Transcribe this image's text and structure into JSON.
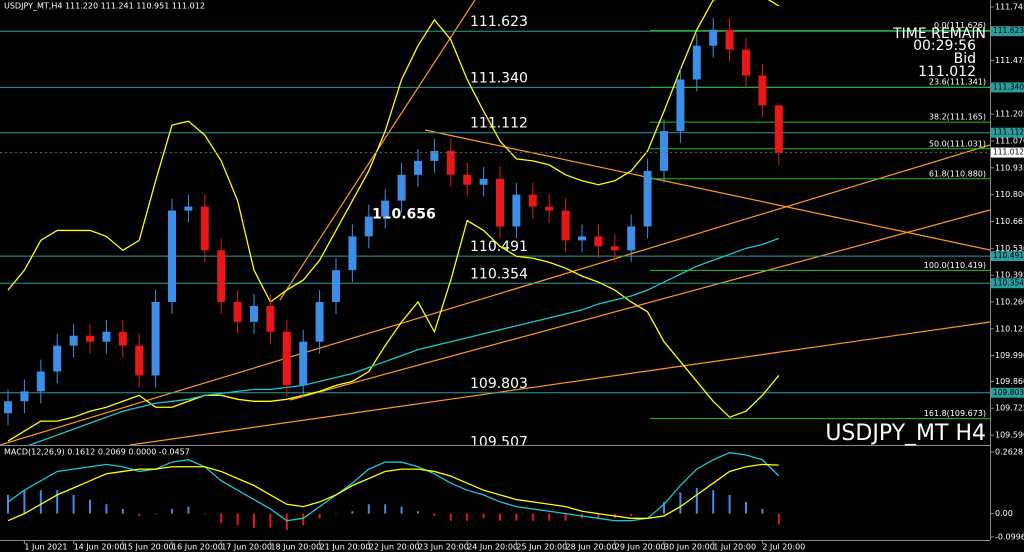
{
  "chart_data": {
    "type": "candlestick",
    "header": "USDJPY_MT,H4  111.220 111.241 110.951 111.012",
    "time_remain_label": "TIME REMAIN",
    "time_remain": "00:29:56",
    "bid_label": "Bid",
    "current_price": 111.012,
    "watermark": "USDJPY_MT H4",
    "categories": [
      null,
      "1 Jun 2021",
      null,
      null,
      "14 Jun 20:00",
      null,
      null,
      "15 Jun 20:00",
      null,
      null,
      "16 Jun 20:00",
      null,
      null,
      "17 Jun 20:00",
      null,
      null,
      "18 Jun 20:00",
      null,
      null,
      "21 Jun 20:00",
      null,
      null,
      "22 Jun 20:00",
      null,
      null,
      "23 Jun 20:00",
      null,
      null,
      "24 Jun 20:00",
      null,
      null,
      "25 Jun 20:00",
      null,
      null,
      "28 Jun 20:00",
      null,
      null,
      "29 Jun 20:00",
      null,
      null,
      "30 Jun 20:00",
      null,
      null,
      "1 Jul 20:00",
      null,
      null,
      "2 Jul 20:00",
      null
    ],
    "open": [
      109.7,
      109.76,
      109.81,
      109.91,
      110.04,
      110.09,
      110.06,
      110.11,
      110.04,
      109.89,
      110.26,
      110.72,
      110.74,
      110.52,
      110.26,
      110.16,
      110.24,
      110.11,
      109.84,
      110.06,
      110.26,
      110.42,
      110.59,
      110.69,
      110.77,
      110.9,
      110.97,
      111.02,
      110.9,
      110.85,
      110.88,
      110.64,
      110.8,
      110.74,
      110.72,
      110.57,
      110.59,
      110.54,
      110.52,
      110.64,
      110.92,
      111.12,
      111.38,
      111.55,
      111.63,
      111.53,
      111.4,
      111.25
    ],
    "high": [
      109.82,
      109.87,
      109.97,
      110.1,
      110.15,
      110.15,
      110.17,
      110.17,
      110.1,
      110.32,
      110.78,
      110.8,
      110.8,
      110.58,
      110.32,
      110.3,
      110.3,
      110.17,
      110.12,
      110.32,
      110.48,
      110.65,
      110.75,
      110.83,
      110.96,
      111.03,
      111.08,
      111.08,
      110.96,
      110.94,
      110.94,
      110.86,
      110.86,
      110.8,
      110.78,
      110.65,
      110.65,
      110.6,
      110.7,
      110.98,
      111.18,
      111.44,
      111.61,
      111.69,
      111.69,
      111.59,
      111.46,
      111.241
    ],
    "low": [
      109.64,
      109.7,
      109.75,
      109.85,
      109.98,
      110.0,
      110.0,
      109.98,
      109.83,
      109.83,
      110.2,
      110.66,
      110.46,
      110.2,
      110.1,
      110.1,
      110.05,
      109.78,
      109.78,
      110.0,
      110.2,
      110.36,
      110.53,
      110.63,
      110.71,
      110.84,
      110.91,
      110.84,
      110.79,
      110.79,
      110.58,
      110.58,
      110.68,
      110.66,
      110.51,
      110.51,
      110.48,
      110.46,
      110.46,
      110.58,
      110.86,
      111.06,
      111.32,
      111.49,
      111.47,
      111.34,
      111.19,
      110.951
    ],
    "close": [
      109.76,
      109.81,
      109.91,
      110.04,
      110.09,
      110.06,
      110.11,
      110.04,
      109.89,
      110.26,
      110.72,
      110.74,
      110.52,
      110.26,
      110.16,
      110.24,
      110.11,
      109.84,
      110.06,
      110.26,
      110.42,
      110.59,
      110.69,
      110.77,
      110.9,
      110.97,
      111.02,
      110.9,
      110.85,
      110.88,
      110.64,
      110.8,
      110.74,
      110.72,
      110.57,
      110.59,
      110.54,
      110.52,
      110.64,
      110.92,
      111.12,
      111.38,
      111.55,
      111.63,
      111.53,
      111.4,
      111.25,
      111.012
    ],
    "up_color": "#3d8ee6",
    "down_color": "#e81818",
    "ylim": [
      109.54,
      111.78
    ],
    "yticks": [
      111.745,
      111.475,
      111.205,
      {
        "value": 111.07,
        "label": "111.070"
      },
      110.935,
      {
        "value": 110.8,
        "label": "110.800"
      },
      110.665,
      {
        "value": 110.53,
        "label": "110.530"
      },
      110.395,
      {
        "value": 110.26,
        "label": "110.260"
      },
      110.125,
      {
        "value": 109.99,
        "label": "109.990"
      },
      {
        "value": 109.86,
        "label": "109.860"
      },
      109.725,
      {
        "value": 109.59,
        "label": "109.590"
      }
    ],
    "levels": [
      {
        "value": 111.623,
        "label": "111.623",
        "line": true
      },
      {
        "value": 111.34,
        "label": "111.340",
        "line": true
      },
      {
        "value": 111.112,
        "label": "111.112",
        "line": true
      },
      {
        "value": 110.656,
        "label": "110.656",
        "line": false
      },
      {
        "value": 110.491,
        "label": "110.491",
        "line": true
      },
      {
        "value": 110.354,
        "label": "110.354",
        "line": true
      },
      {
        "value": 109.803,
        "label": "109.803",
        "line": true
      },
      {
        "value": 109.507,
        "label": "109.507",
        "line": false
      }
    ],
    "level_color": "#2a9d9d",
    "fib_color": "#22c222",
    "fib_levels": [
      {
        "value": 111.626,
        "label": "0.0(111.626)"
      },
      {
        "value": 111.341,
        "label": "23.6(111.341)"
      },
      {
        "value": 111.165,
        "label": "38.2(111.165)"
      },
      {
        "value": 111.031,
        "label": "50.0(111.031)"
      },
      {
        "value": 110.88,
        "label": "61.8(110.880)"
      },
      {
        "value": 110.419,
        "label": "100.0(110.419)"
      },
      {
        "value": 109.673,
        "label": "161.8(109.673)"
      }
    ],
    "overlays": [
      {
        "color": "#ffff00",
        "values": [
          110.32,
          110.42,
          110.57,
          110.62,
          110.62,
          110.62,
          110.59,
          110.52,
          110.57,
          110.87,
          111.15,
          111.17,
          111.1,
          110.97,
          110.77,
          110.42,
          110.26,
          110.32,
          110.37,
          110.47,
          110.62,
          110.77,
          110.92,
          111.12,
          111.38,
          111.55,
          111.68,
          111.58,
          111.38,
          111.22,
          111.07,
          110.98,
          110.97,
          110.95,
          110.9,
          110.87,
          110.85,
          110.87,
          110.92,
          111.02,
          111.22,
          111.43,
          111.63,
          111.78,
          111.8,
          111.82,
          111.8,
          111.75
        ]
      },
      {
        "color": "#ffff00",
        "values": [
          109.56,
          109.61,
          109.66,
          109.66,
          109.68,
          109.71,
          109.73,
          109.76,
          109.79,
          109.73,
          109.73,
          109.76,
          109.79,
          109.79,
          109.77,
          109.76,
          109.76,
          109.77,
          109.79,
          109.81,
          109.84,
          109.86,
          109.91,
          110.04,
          110.16,
          110.26,
          110.11,
          110.37,
          110.67,
          110.62,
          110.54,
          110.49,
          110.48,
          110.46,
          110.43,
          110.39,
          110.36,
          110.32,
          110.26,
          110.21,
          110.06,
          109.96,
          109.86,
          109.76,
          109.68,
          109.71,
          109.79,
          109.89
        ]
      },
      {
        "color": "#19c8d2",
        "values": [
          109.5,
          109.53,
          109.56,
          109.59,
          109.62,
          109.65,
          109.68,
          109.71,
          109.73,
          109.75,
          109.76,
          109.77,
          109.79,
          109.8,
          109.81,
          109.82,
          109.82,
          109.83,
          109.84,
          109.86,
          109.88,
          109.9,
          109.93,
          109.96,
          109.99,
          110.02,
          110.04,
          110.06,
          110.08,
          110.1,
          110.12,
          110.14,
          110.16,
          110.18,
          110.2,
          110.22,
          110.25,
          110.27,
          110.29,
          110.32,
          110.36,
          110.4,
          110.44,
          110.47,
          110.5,
          110.53,
          110.55,
          110.58
        ]
      }
    ],
    "macd": {
      "label": "MACD(12,26,9) 0.1612 0.2069 0.0000 -0.0457",
      "ylim": [
        -0.1125,
        0.2843
      ],
      "yticks": [
        0.2628,
        {
          "value": 0,
          "label": "0.00"
        },
        -0.0996
      ],
      "histogram": [
        0.08,
        0.1,
        0.1,
        0.1,
        0.08,
        0.06,
        0.04,
        0.02,
        -0.01,
        0.0,
        0.02,
        0.03,
        0.0,
        -0.04,
        -0.05,
        -0.06,
        -0.06,
        -0.07,
        -0.05,
        -0.02,
        0.0,
        0.01,
        0.04,
        0.04,
        0.03,
        0.01,
        -0.01,
        -0.03,
        -0.03,
        -0.02,
        -0.03,
        -0.03,
        -0.03,
        -0.03,
        -0.03,
        -0.02,
        -0.02,
        -0.02,
        -0.01,
        0.0,
        0.05,
        0.09,
        0.11,
        0.1,
        0.08,
        0.05,
        0.02,
        -0.0457
      ],
      "main": {
        "color": "#19c8d2",
        "values": [
          0.05,
          0.1,
          0.14,
          0.18,
          0.19,
          0.2,
          0.21,
          0.2,
          0.18,
          0.19,
          0.22,
          0.23,
          0.2,
          0.14,
          0.1,
          0.06,
          0.02,
          -0.03,
          -0.02,
          0.03,
          0.08,
          0.13,
          0.19,
          0.22,
          0.22,
          0.2,
          0.17,
          0.13,
          0.1,
          0.08,
          0.05,
          0.03,
          0.02,
          0.01,
          0.0,
          -0.01,
          -0.02,
          -0.03,
          -0.03,
          -0.02,
          0.04,
          0.12,
          0.19,
          0.23,
          0.26,
          0.25,
          0.23,
          0.1612
        ]
      },
      "signal": {
        "color": "#ffff00",
        "values": [
          -0.03,
          0.0,
          0.04,
          0.08,
          0.11,
          0.14,
          0.17,
          0.18,
          0.19,
          0.19,
          0.2,
          0.2,
          0.2,
          0.18,
          0.15,
          0.12,
          0.08,
          0.04,
          0.03,
          0.05,
          0.08,
          0.12,
          0.15,
          0.18,
          0.19,
          0.19,
          0.18,
          0.16,
          0.13,
          0.1,
          0.08,
          0.06,
          0.05,
          0.04,
          0.03,
          0.01,
          0.0,
          -0.01,
          -0.02,
          -0.02,
          -0.01,
          0.03,
          0.08,
          0.13,
          0.18,
          0.2,
          0.21,
          0.2069
        ]
      }
    }
  }
}
